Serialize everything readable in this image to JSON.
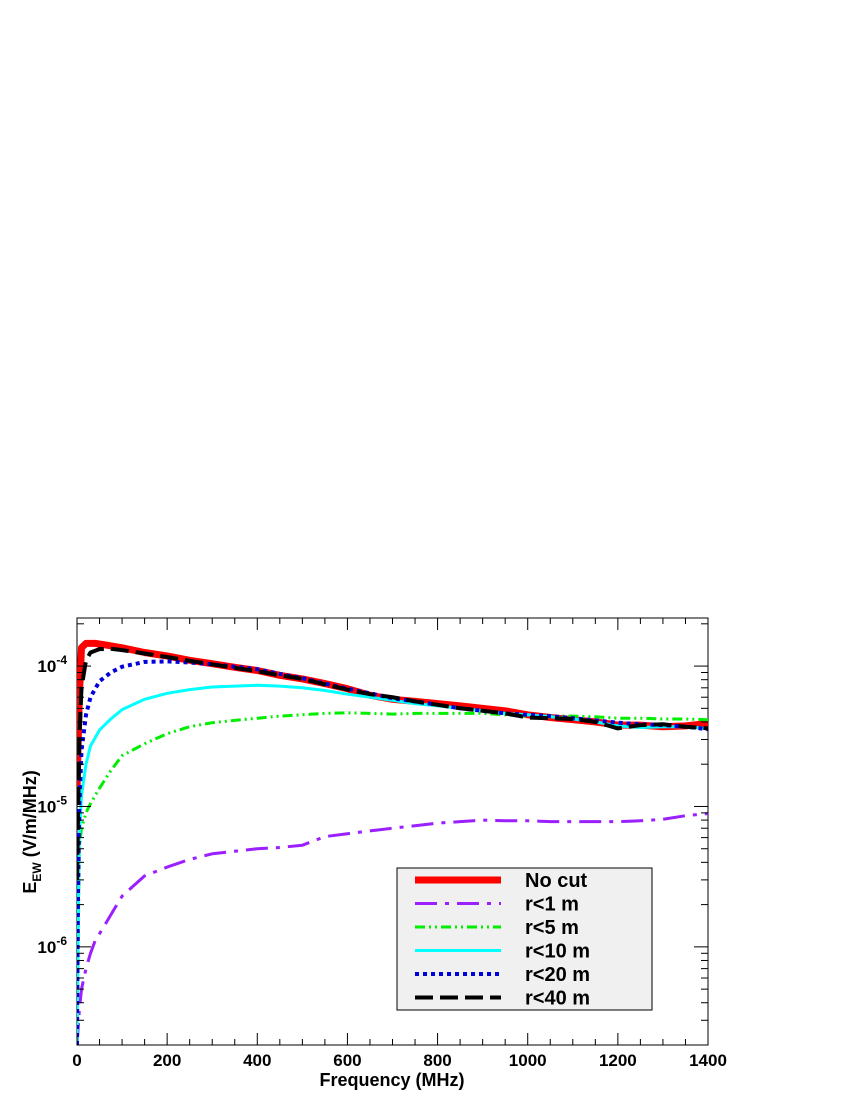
{
  "chart_data": {
    "type": "line",
    "title": "",
    "xlabel": "Frequency (MHz)",
    "ylabel_main": "E",
    "ylabel_sub": "EW",
    "ylabel_unit": " (V/m/MHz)",
    "xlim": [
      0,
      1400
    ],
    "ylim": [
      2e-07,
      0.00022
    ],
    "yscale": "log",
    "grid": false,
    "legend_position": "bottom-right",
    "x_ticks": [
      {
        "value": 0,
        "label": "0"
      },
      {
        "value": 200,
        "label": "200"
      },
      {
        "value": 400,
        "label": "400"
      },
      {
        "value": 600,
        "label": "600"
      },
      {
        "value": 800,
        "label": "800"
      },
      {
        "value": 1000,
        "label": "1000"
      },
      {
        "value": 1200,
        "label": "1200"
      },
      {
        "value": 1400,
        "label": "1400"
      }
    ],
    "y_ticks": [
      {
        "value": 1e-06,
        "base": "10",
        "exp": "-6"
      },
      {
        "value": 1e-05,
        "base": "10",
        "exp": "-5"
      },
      {
        "value": 0.0001,
        "base": "10",
        "exp": "-4"
      }
    ],
    "series": [
      {
        "name": "No cut",
        "color": "#ff0000",
        "style": "solid-thick",
        "points": [
          [
            0,
            1.3e-05
          ],
          [
            5,
            6e-05
          ],
          [
            10,
            0.000135
          ],
          [
            20,
            0.000145
          ],
          [
            40,
            0.000145
          ],
          [
            60,
            0.000142
          ],
          [
            100,
            0.000135
          ],
          [
            150,
            0.000125
          ],
          [
            200,
            0.000118
          ],
          [
            250,
            0.00011
          ],
          [
            300,
            0.000104
          ],
          [
            350,
            9.8e-05
          ],
          [
            400,
            9.3e-05
          ],
          [
            450,
            8.6e-05
          ],
          [
            500,
            8.1e-05
          ],
          [
            550,
            7.5e-05
          ],
          [
            600,
            6.9e-05
          ],
          [
            650,
            6.2e-05
          ],
          [
            700,
            5.8e-05
          ],
          [
            750,
            5.6e-05
          ],
          [
            800,
            5.4e-05
          ],
          [
            850,
            5.2e-05
          ],
          [
            900,
            5e-05
          ],
          [
            950,
            4.8e-05
          ],
          [
            1000,
            4.5e-05
          ],
          [
            1050,
            4.3e-05
          ],
          [
            1100,
            4.15e-05
          ],
          [
            1150,
            4e-05
          ],
          [
            1200,
            3.8e-05
          ],
          [
            1250,
            3.8e-05
          ],
          [
            1300,
            3.7e-05
          ],
          [
            1350,
            3.75e-05
          ],
          [
            1400,
            3.9e-05
          ]
        ]
      },
      {
        "name": "r<1 m",
        "color": "#9b1fff",
        "style": "dashdot",
        "points": [
          [
            0,
            2e-07
          ],
          [
            5,
            3.5e-07
          ],
          [
            10,
            5e-07
          ],
          [
            20,
            7e-07
          ],
          [
            30,
            9e-07
          ],
          [
            40,
            1.1e-06
          ],
          [
            60,
            1.4e-06
          ],
          [
            80,
            1.8e-06
          ],
          [
            100,
            2.3e-06
          ],
          [
            150,
            3.2e-06
          ],
          [
            200,
            3.7e-06
          ],
          [
            250,
            4.2e-06
          ],
          [
            300,
            4.6e-06
          ],
          [
            350,
            4.8e-06
          ],
          [
            400,
            5e-06
          ],
          [
            450,
            5.1e-06
          ],
          [
            500,
            5.3e-06
          ],
          [
            550,
            6.1e-06
          ],
          [
            600,
            6.4e-06
          ],
          [
            650,
            6.7e-06
          ],
          [
            700,
            7e-06
          ],
          [
            750,
            7.3e-06
          ],
          [
            800,
            7.6e-06
          ],
          [
            850,
            7.8e-06
          ],
          [
            900,
            8e-06
          ],
          [
            950,
            7.9e-06
          ],
          [
            1000,
            7.9e-06
          ],
          [
            1050,
            7.8e-06
          ],
          [
            1100,
            7.8e-06
          ],
          [
            1150,
            7.8e-06
          ],
          [
            1200,
            7.8e-06
          ],
          [
            1250,
            7.9e-06
          ],
          [
            1300,
            8.1e-06
          ],
          [
            1350,
            8.6e-06
          ],
          [
            1400,
            8.9e-06
          ]
        ]
      },
      {
        "name": "r<5 m",
        "color": "#00ee00",
        "style": "dashdotdot",
        "points": [
          [
            0,
            2e-07
          ],
          [
            5,
            5e-06
          ],
          [
            10,
            7e-06
          ],
          [
            20,
            9e-06
          ],
          [
            30,
            1.05e-05
          ],
          [
            50,
            1.35e-05
          ],
          [
            75,
            1.8e-05
          ],
          [
            100,
            2.3e-05
          ],
          [
            150,
            2.8e-05
          ],
          [
            200,
            3.3e-05
          ],
          [
            250,
            3.7e-05
          ],
          [
            300,
            3.95e-05
          ],
          [
            350,
            4.1e-05
          ],
          [
            400,
            4.25e-05
          ],
          [
            450,
            4.4e-05
          ],
          [
            500,
            4.5e-05
          ],
          [
            550,
            4.6e-05
          ],
          [
            600,
            4.65e-05
          ],
          [
            650,
            4.6e-05
          ],
          [
            700,
            4.55e-05
          ],
          [
            750,
            4.6e-05
          ],
          [
            800,
            4.6e-05
          ],
          [
            850,
            4.6e-05
          ],
          [
            900,
            4.6e-05
          ],
          [
            950,
            4.5e-05
          ],
          [
            1000,
            4.4e-05
          ],
          [
            1050,
            4.4e-05
          ],
          [
            1100,
            4.4e-05
          ],
          [
            1150,
            4.35e-05
          ],
          [
            1200,
            4.25e-05
          ],
          [
            1250,
            4.25e-05
          ],
          [
            1300,
            4.2e-05
          ],
          [
            1350,
            4.2e-05
          ],
          [
            1400,
            4.15e-05
          ]
        ]
      },
      {
        "name": "r<10 m",
        "color": "#00ffff",
        "style": "solid",
        "points": [
          [
            0,
            2e-07
          ],
          [
            3,
            2e-06
          ],
          [
            5,
            6e-06
          ],
          [
            10,
            1.2e-05
          ],
          [
            20,
            2e-05
          ],
          [
            30,
            2.7e-05
          ],
          [
            50,
            3.5e-05
          ],
          [
            75,
            4.2e-05
          ],
          [
            100,
            4.9e-05
          ],
          [
            150,
            5.8e-05
          ],
          [
            200,
            6.4e-05
          ],
          [
            250,
            6.8e-05
          ],
          [
            300,
            7.1e-05
          ],
          [
            350,
            7.2e-05
          ],
          [
            400,
            7.3e-05
          ],
          [
            450,
            7.2e-05
          ],
          [
            500,
            7e-05
          ],
          [
            550,
            6.7e-05
          ],
          [
            600,
            6.3e-05
          ],
          [
            650,
            6e-05
          ],
          [
            700,
            5.7e-05
          ],
          [
            750,
            5.4e-05
          ],
          [
            800,
            5.2e-05
          ],
          [
            850,
            5e-05
          ],
          [
            900,
            4.8e-05
          ],
          [
            950,
            4.6e-05
          ],
          [
            1000,
            4.5e-05
          ],
          [
            1050,
            4.35e-05
          ],
          [
            1100,
            4.2e-05
          ],
          [
            1150,
            4e-05
          ],
          [
            1200,
            3.75e-05
          ],
          [
            1250,
            3.65e-05
          ],
          [
            1300,
            3.7e-05
          ],
          [
            1350,
            3.7e-05
          ],
          [
            1400,
            3.6e-05
          ]
        ]
      },
      {
        "name": "r<20 m",
        "color": "#0000dd",
        "style": "dotted",
        "points": [
          [
            0,
            2e-07
          ],
          [
            2,
            2e-06
          ],
          [
            5,
            1e-05
          ],
          [
            10,
            2.5e-05
          ],
          [
            20,
            4.5e-05
          ],
          [
            30,
            6e-05
          ],
          [
            50,
            7.8e-05
          ],
          [
            75,
            9e-05
          ],
          [
            100,
            9.9e-05
          ],
          [
            150,
            0.000107
          ],
          [
            200,
            0.000108
          ],
          [
            250,
            0.000106
          ],
          [
            300,
            0.000103
          ],
          [
            350,
            9.9e-05
          ],
          [
            400,
            9.5e-05
          ],
          [
            450,
            8.8e-05
          ],
          [
            500,
            8.2e-05
          ],
          [
            550,
            7.5e-05
          ],
          [
            600,
            6.9e-05
          ],
          [
            650,
            6.4e-05
          ],
          [
            700,
            5.9e-05
          ],
          [
            750,
            5.6e-05
          ],
          [
            800,
            5.3e-05
          ],
          [
            850,
            5e-05
          ],
          [
            900,
            4.8e-05
          ],
          [
            950,
            4.6e-05
          ],
          [
            1000,
            4.5e-05
          ],
          [
            1050,
            4.4e-05
          ],
          [
            1100,
            4.25e-05
          ],
          [
            1150,
            4.1e-05
          ],
          [
            1200,
            3.95e-05
          ],
          [
            1250,
            3.85e-05
          ],
          [
            1300,
            3.8e-05
          ],
          [
            1350,
            3.7e-05
          ],
          [
            1400,
            3.55e-05
          ]
        ]
      },
      {
        "name": "r<40 m",
        "color": "#000000",
        "style": "dashed",
        "points": [
          [
            0,
            3e-06
          ],
          [
            5,
            3e-05
          ],
          [
            10,
            7e-05
          ],
          [
            20,
            0.00011
          ],
          [
            30,
            0.000125
          ],
          [
            50,
            0.000132
          ],
          [
            75,
            0.000133
          ],
          [
            100,
            0.00013
          ],
          [
            150,
            0.000123
          ],
          [
            200,
            0.000116
          ],
          [
            250,
            0.000109
          ],
          [
            300,
            0.000103
          ],
          [
            350,
            9.7e-05
          ],
          [
            400,
            9.2e-05
          ],
          [
            450,
            8.6e-05
          ],
          [
            500,
            8.1e-05
          ],
          [
            550,
            7.4e-05
          ],
          [
            600,
            6.8e-05
          ],
          [
            650,
            6.3e-05
          ],
          [
            700,
            6e-05
          ],
          [
            750,
            5.6e-05
          ],
          [
            800,
            5.3e-05
          ],
          [
            850,
            5e-05
          ],
          [
            900,
            4.8e-05
          ],
          [
            950,
            4.6e-05
          ],
          [
            1000,
            4.3e-05
          ],
          [
            1050,
            4.25e-05
          ],
          [
            1100,
            4.2e-05
          ],
          [
            1150,
            4e-05
          ],
          [
            1200,
            3.6e-05
          ],
          [
            1250,
            3.8e-05
          ],
          [
            1300,
            3.85e-05
          ],
          [
            1350,
            3.7e-05
          ],
          [
            1400,
            3.6e-05
          ]
        ]
      }
    ]
  }
}
